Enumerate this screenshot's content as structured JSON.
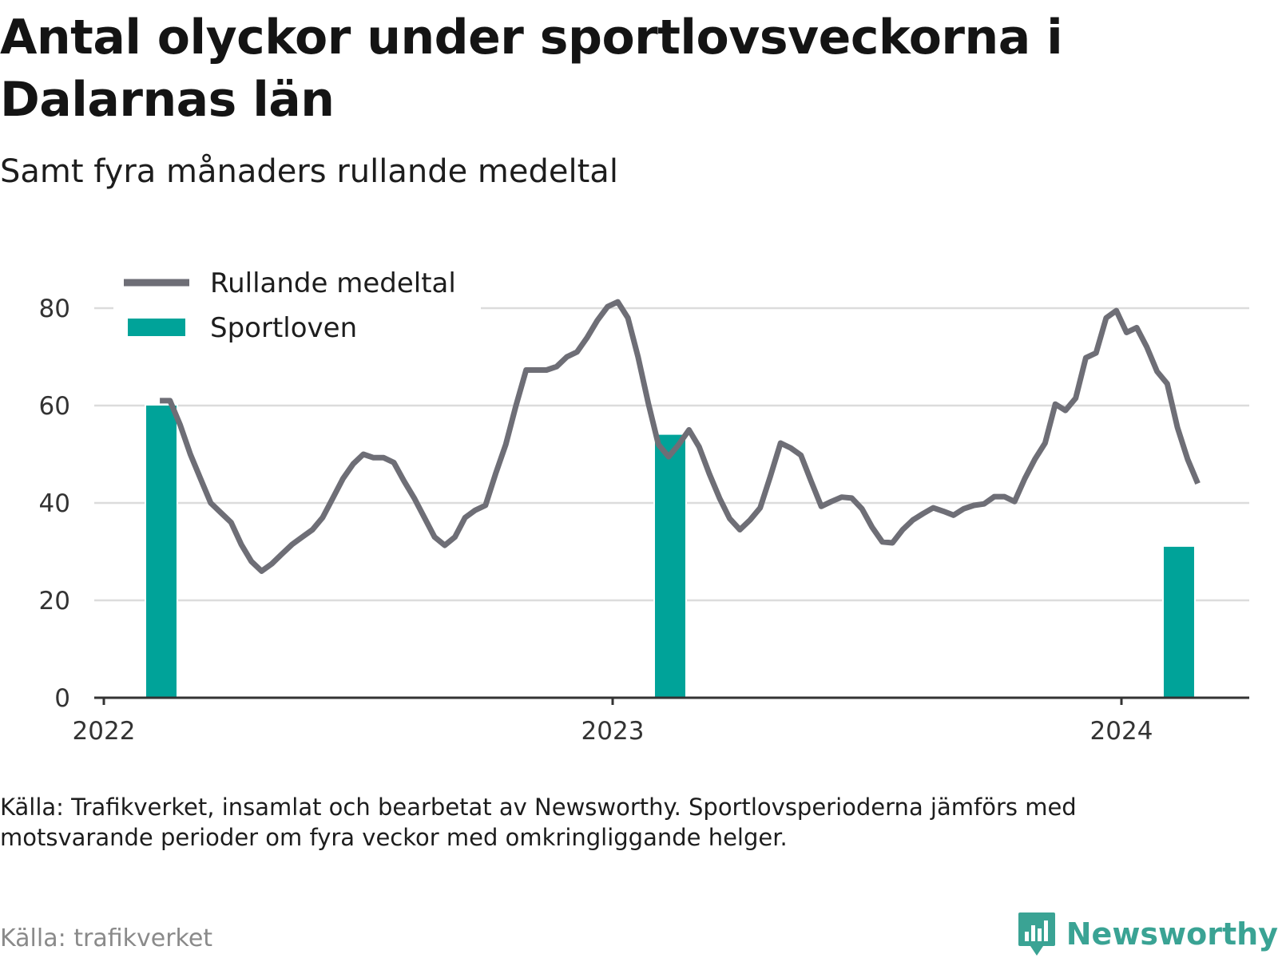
{
  "title": "Antal olyckor under sportlovsveckorna i Dalarnas län",
  "subtitle": "Samt fyra månaders rullande medeltal",
  "note": "Källa: Trafikverket, insamlat och bearbetat av Newsworthy. Sportlovsperioderna jämförs med motsvarande perioder om fyra veckor med omkringliggande helger.",
  "source": "Källa: trafikverket",
  "brand": "Newsworthy",
  "colors": {
    "line": "#6e6e76",
    "bar": "#00a399",
    "grid": "#dcdcdc",
    "axis": "#333333",
    "brand": "#3aa394"
  },
  "chart_data": {
    "type": "bar+line",
    "ylim": [
      0,
      80
    ],
    "yticks": [
      0,
      20,
      40,
      60,
      80
    ],
    "xticks": [
      {
        "x": 2022,
        "label": "2022"
      },
      {
        "x": 2023,
        "label": "2023"
      },
      {
        "x": 2024,
        "label": "2024"
      }
    ],
    "grid": true,
    "legend": {
      "placement": "top-left",
      "items": [
        {
          "label": "Rullande medeltal",
          "kind": "line"
        },
        {
          "label": "Sportloven",
          "kind": "bar"
        }
      ]
    },
    "bars": {
      "name": "Sportloven",
      "items": [
        {
          "x": 2022.113,
          "value": 60
        },
        {
          "x": 2023.113,
          "value": 54
        },
        {
          "x": 2024.113,
          "value": 31
        }
      ]
    },
    "line": {
      "name": "Rullande medeltal",
      "points": [
        [
          2022.11,
          61
        ],
        [
          2022.13,
          61
        ],
        [
          2022.15,
          56
        ],
        [
          2022.17,
          50
        ],
        [
          2022.19,
          45
        ],
        [
          2022.21,
          40
        ],
        [
          2022.23,
          38
        ],
        [
          2022.25,
          36
        ],
        [
          2022.27,
          31.5
        ],
        [
          2022.29,
          28
        ],
        [
          2022.31,
          26
        ],
        [
          2022.33,
          27.5
        ],
        [
          2022.35,
          29.5
        ],
        [
          2022.37,
          31.5
        ],
        [
          2022.39,
          33
        ],
        [
          2022.41,
          34.5
        ],
        [
          2022.43,
          37
        ],
        [
          2022.45,
          41
        ],
        [
          2022.47,
          45
        ],
        [
          2022.49,
          48
        ],
        [
          2022.51,
          50
        ],
        [
          2022.53,
          49.3
        ],
        [
          2022.55,
          49.3
        ],
        [
          2022.57,
          48.3
        ],
        [
          2022.59,
          44.5
        ],
        [
          2022.61,
          41
        ],
        [
          2022.63,
          37
        ],
        [
          2022.65,
          33
        ],
        [
          2022.67,
          31.3
        ],
        [
          2022.69,
          33
        ],
        [
          2022.71,
          37
        ],
        [
          2022.73,
          38.5
        ],
        [
          2022.75,
          39.5
        ],
        [
          2022.77,
          46
        ],
        [
          2022.79,
          52
        ],
        [
          2022.81,
          60
        ],
        [
          2022.83,
          67.3
        ],
        [
          2022.85,
          67.3
        ],
        [
          2022.87,
          67.3
        ],
        [
          2022.89,
          68
        ],
        [
          2022.91,
          70
        ],
        [
          2022.93,
          71
        ],
        [
          2022.95,
          74
        ],
        [
          2022.97,
          77.5
        ],
        [
          2022.99,
          80.3
        ],
        [
          2023.01,
          81.3
        ],
        [
          2023.03,
          78
        ],
        [
          2023.05,
          70
        ],
        [
          2023.07,
          60.5
        ],
        [
          2023.09,
          52
        ],
        [
          2023.11,
          49.5
        ],
        [
          2023.13,
          52
        ],
        [
          2023.15,
          55
        ],
        [
          2023.17,
          51.5
        ],
        [
          2023.19,
          46
        ],
        [
          2023.21,
          41
        ],
        [
          2023.23,
          36.8
        ],
        [
          2023.25,
          34.5
        ],
        [
          2023.27,
          36.5
        ],
        [
          2023.29,
          39
        ],
        [
          2023.31,
          45.5
        ],
        [
          2023.33,
          52.3
        ],
        [
          2023.35,
          51.3
        ],
        [
          2023.37,
          49.8
        ],
        [
          2023.39,
          44.5
        ],
        [
          2023.41,
          39.3
        ],
        [
          2023.43,
          40.3
        ],
        [
          2023.45,
          41.2
        ],
        [
          2023.47,
          41
        ],
        [
          2023.49,
          38.8
        ],
        [
          2023.51,
          35
        ],
        [
          2023.53,
          32
        ],
        [
          2023.55,
          31.8
        ],
        [
          2023.57,
          34.5
        ],
        [
          2023.59,
          36.5
        ],
        [
          2023.61,
          37.8
        ],
        [
          2023.63,
          39
        ],
        [
          2023.65,
          38.3
        ],
        [
          2023.67,
          37.5
        ],
        [
          2023.69,
          38.8
        ],
        [
          2023.71,
          39.5
        ],
        [
          2023.73,
          39.8
        ],
        [
          2023.75,
          41.3
        ],
        [
          2023.77,
          41.3
        ],
        [
          2023.79,
          40.3
        ],
        [
          2023.81,
          45
        ],
        [
          2023.83,
          49
        ],
        [
          2023.85,
          52.3
        ],
        [
          2023.87,
          60.3
        ],
        [
          2023.89,
          59
        ],
        [
          2023.91,
          61.5
        ],
        [
          2023.93,
          69.8
        ],
        [
          2023.95,
          70.8
        ],
        [
          2023.97,
          78
        ],
        [
          2023.99,
          79.5
        ],
        [
          2024.01,
          75
        ],
        [
          2024.03,
          76
        ],
        [
          2024.05,
          72
        ],
        [
          2024.07,
          67
        ],
        [
          2024.09,
          64.5
        ],
        [
          2024.11,
          55.5
        ],
        [
          2024.13,
          49
        ],
        [
          2024.15,
          44
        ]
      ]
    }
  }
}
